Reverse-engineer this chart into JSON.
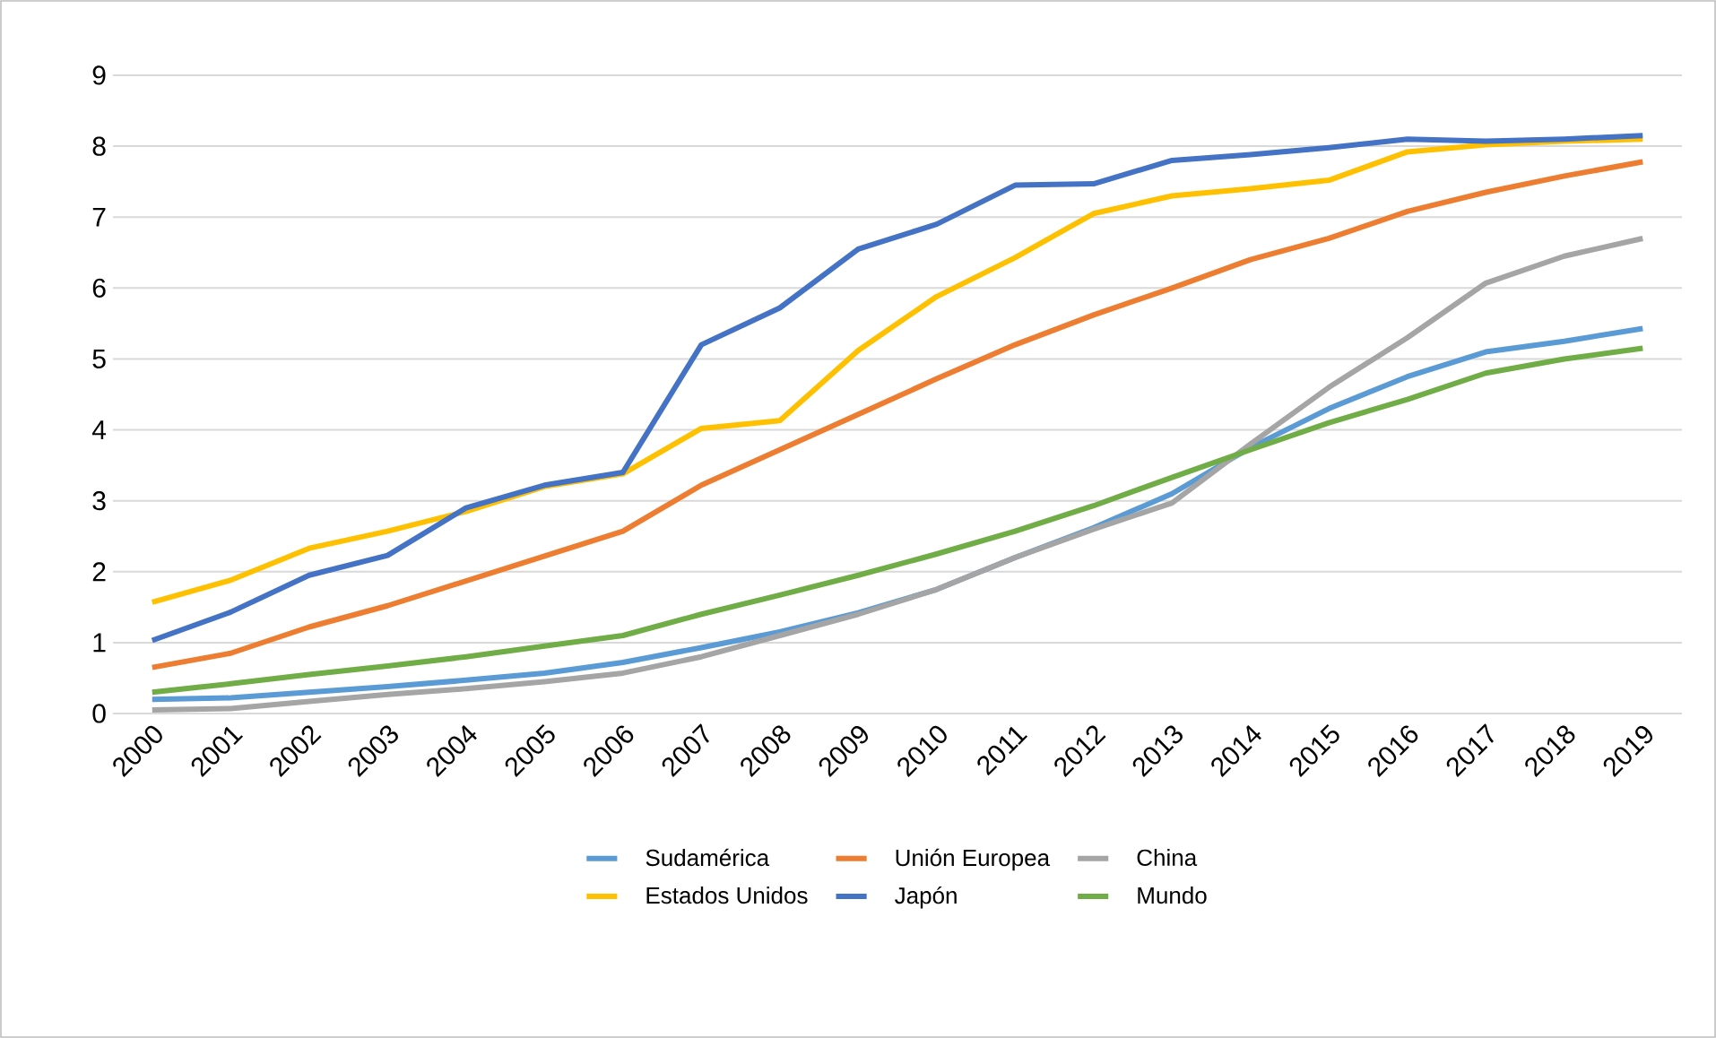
{
  "chart_data": {
    "type": "line",
    "categories": [
      "2000",
      "2001",
      "2002",
      "2003",
      "2004",
      "2005",
      "2006",
      "2007",
      "2008",
      "2009",
      "2010",
      "2011",
      "2012",
      "2013",
      "2014",
      "2015",
      "2016",
      "2017",
      "2018",
      "2019"
    ],
    "series": [
      {
        "name": "Sudamérica",
        "color": "#5b9bd5",
        "values": [
          0.2,
          0.22,
          0.3,
          0.38,
          0.47,
          0.57,
          0.72,
          0.93,
          1.15,
          1.42,
          1.75,
          2.2,
          2.62,
          3.1,
          3.75,
          4.3,
          4.75,
          5.1,
          5.25,
          5.43
        ]
      },
      {
        "name": "Unión Europea",
        "color": "#ed7d31",
        "values": [
          0.65,
          0.85,
          1.22,
          1.52,
          1.87,
          2.22,
          2.57,
          3.22,
          3.72,
          4.22,
          4.72,
          5.2,
          5.62,
          6.0,
          6.4,
          6.7,
          7.08,
          7.35,
          7.58,
          7.78
        ]
      },
      {
        "name": "China",
        "color": "#a5a5a5",
        "values": [
          0.05,
          0.07,
          0.17,
          0.27,
          0.35,
          0.45,
          0.57,
          0.8,
          1.1,
          1.4,
          1.75,
          2.2,
          2.6,
          2.97,
          3.8,
          4.6,
          5.3,
          6.07,
          6.45,
          6.7
        ]
      },
      {
        "name": "Estados Unidos",
        "color": "#ffc000",
        "values": [
          1.57,
          1.88,
          2.33,
          2.57,
          2.85,
          3.2,
          3.38,
          4.02,
          4.13,
          5.12,
          5.88,
          6.43,
          7.05,
          7.3,
          7.4,
          7.52,
          7.92,
          8.02,
          8.07,
          8.1
        ]
      },
      {
        "name": "Japón",
        "color": "#4472c4",
        "values": [
          1.03,
          1.43,
          1.95,
          2.23,
          2.9,
          3.22,
          3.4,
          5.2,
          5.72,
          6.55,
          6.9,
          7.45,
          7.47,
          7.8,
          7.88,
          7.98,
          8.1,
          8.07,
          8.1,
          8.15
        ]
      },
      {
        "name": "Mundo",
        "color": "#70ad47",
        "values": [
          0.3,
          0.42,
          0.55,
          0.67,
          0.8,
          0.95,
          1.1,
          1.4,
          1.67,
          1.95,
          2.25,
          2.57,
          2.93,
          3.33,
          3.72,
          4.1,
          4.43,
          4.8,
          5.0,
          5.15
        ]
      }
    ],
    "ylim": [
      0,
      9
    ],
    "yticks": [
      0,
      1,
      2,
      3,
      4,
      5,
      6,
      7,
      8,
      9
    ],
    "grid": "y",
    "legend": "bottom",
    "marker": "none",
    "line_style": "solid"
  }
}
